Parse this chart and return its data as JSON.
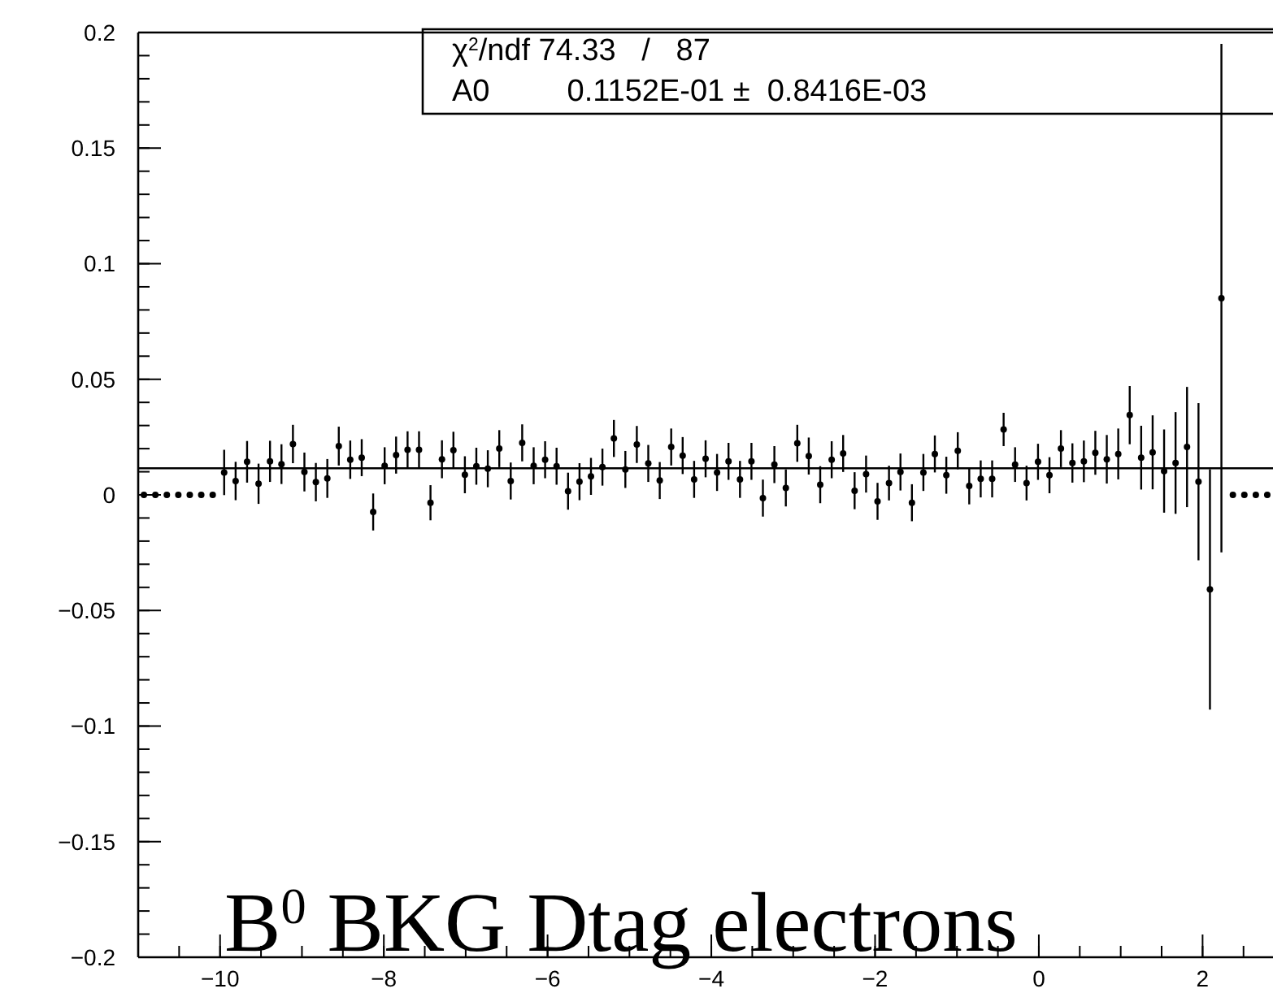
{
  "chart_data": {
    "type": "scatter",
    "marker": "circle",
    "grid": false,
    "x": [
      -10.93,
      -10.79,
      -10.65,
      -10.51,
      -10.37,
      -10.23,
      -10.09,
      -9.95,
      -9.81,
      -9.67,
      -9.53,
      -9.39,
      -9.25,
      -9.11,
      -8.97,
      -8.83,
      -8.69,
      -8.55,
      -8.41,
      -8.27,
      -8.13,
      -7.99,
      -7.85,
      -7.71,
      -7.57,
      -7.43,
      -7.29,
      -7.15,
      -7.01,
      -6.87,
      -6.73,
      -6.59,
      -6.45,
      -6.31,
      -6.17,
      -6.03,
      -5.89,
      -5.75,
      -5.61,
      -5.47,
      -5.33,
      -5.19,
      -5.05,
      -4.91,
      -4.77,
      -4.63,
      -4.49,
      -4.35,
      -4.21,
      -4.07,
      -3.93,
      -3.79,
      -3.65,
      -3.51,
      -3.37,
      -3.23,
      -3.09,
      -2.95,
      -2.81,
      -2.67,
      -2.53,
      -2.39,
      -2.25,
      -2.11,
      -1.97,
      -1.83,
      -1.69,
      -1.55,
      -1.41,
      -1.27,
      -1.13,
      -0.99,
      -0.85,
      -0.71,
      -0.57,
      -0.43,
      -0.29,
      -0.15,
      -0.01,
      0.13,
      0.27,
      0.41,
      0.55,
      0.69,
      0.83,
      0.97,
      1.11,
      1.25,
      1.39,
      1.53,
      1.67,
      1.81,
      1.95,
      2.09,
      2.23,
      2.37,
      2.51,
      2.65,
      2.79
    ],
    "values": [
      0,
      0,
      0,
      0,
      0,
      0,
      0,
      0.0097,
      0.006,
      0.0143,
      0.0048,
      0.0145,
      0.0133,
      0.022,
      0.0099,
      0.0055,
      0.0071,
      0.0211,
      0.0152,
      0.0161,
      -0.0074,
      0.0126,
      0.0172,
      0.0195,
      0.0195,
      -0.0034,
      0.0154,
      0.0193,
      0.0087,
      0.0124,
      0.0113,
      0.02,
      0.006,
      0.0225,
      0.0126,
      0.0152,
      0.0124,
      0.0016,
      0.0057,
      0.008,
      0.012,
      0.0244,
      0.011,
      0.0218,
      0.0136,
      0.0062,
      0.0207,
      0.017,
      0.0067,
      0.0156,
      0.0097,
      0.0145,
      0.0067,
      0.0145,
      -0.0014,
      0.0131,
      0.003,
      0.0223,
      0.0168,
      0.0044,
      0.0152,
      0.0179,
      0.0018,
      0.009,
      -0.0028,
      0.0051,
      0.0099,
      -0.0034,
      0.0097,
      0.0177,
      0.0085,
      0.0191,
      0.0039,
      0.0069,
      0.0069,
      0.0283,
      0.0131,
      0.0051,
      0.0143,
      0.0085,
      0.02,
      0.0138,
      0.0145,
      0.0182,
      0.0154,
      0.0177,
      0.0345,
      0.0161,
      0.0184,
      0.0103,
      0.0138,
      0.0207,
      0.0057,
      -0.0409,
      0.0851,
      0,
      0,
      0,
      0
    ],
    "errors": [
      null,
      null,
      null,
      null,
      null,
      null,
      null,
      0.0098,
      0.0083,
      0.009,
      0.0087,
      0.0089,
      0.0086,
      0.0083,
      0.0084,
      0.0083,
      0.0084,
      0.0084,
      0.0083,
      0.008,
      0.008,
      0.008,
      0.008,
      0.008,
      0.008,
      0.0076,
      0.0082,
      0.008,
      0.008,
      0.008,
      0.008,
      0.008,
      0.008,
      0.008,
      0.008,
      0.008,
      0.008,
      0.008,
      0.008,
      0.008,
      0.008,
      0.008,
      0.008,
      0.008,
      0.008,
      0.008,
      0.008,
      0.008,
      0.008,
      0.008,
      0.008,
      0.008,
      0.008,
      0.008,
      0.008,
      0.008,
      0.008,
      0.008,
      0.008,
      0.008,
      0.008,
      0.008,
      0.008,
      0.008,
      0.008,
      0.0075,
      0.008,
      0.008,
      0.008,
      0.008,
      0.008,
      0.008,
      0.008,
      0.008,
      0.008,
      0.0072,
      0.0075,
      0.0075,
      0.0078,
      0.0078,
      0.008,
      0.0085,
      0.009,
      0.0095,
      0.0105,
      0.011,
      0.0126,
      0.0138,
      0.016,
      0.018,
      0.022,
      0.026,
      0.034,
      0.052,
      0.11,
      null,
      null,
      null,
      null
    ],
    "xlim": [
      -11,
      2.86
    ],
    "ylim": [
      -0.2,
      0.2
    ],
    "xticks": [
      -10,
      -8,
      -6,
      -4,
      -2,
      0,
      2
    ],
    "yticks": [
      -0.2,
      -0.15,
      -0.1,
      -0.05,
      0,
      0.05,
      0.1,
      0.15,
      0.2
    ],
    "ref_lines": [
      {
        "axis": "y",
        "value": 0.01152,
        "color": "#000000"
      }
    ],
    "annotations": [
      "χ$^{2}$/ndf 74.33   /   87",
      "A0         0.1152E-01 ±  0.8416E-03",
      "B$^{0}$ BKG Dtag electrons"
    ]
  }
}
